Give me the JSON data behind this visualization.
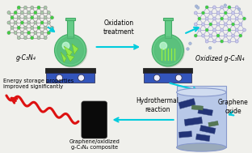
{
  "bg_color": "#f0f0ec",
  "title": "g-C₃N₄",
  "oxidized_title": "Oxidized g-C₃N₄",
  "oxidation_label": "Oxidation\ntreatment",
  "hydrothermal_label": "Hydrothermal\nreaction",
  "graphene_oxide_label": "Graphene\noxide",
  "composite_label": "Graphene/oxidized\ng-C₃N₄ composite",
  "energy_label": "Energy storage properties\nimproved significantly",
  "arrow_color": "#00ccdd",
  "flask_color_light": "#aaeebb",
  "flask_color_mid": "#66cc88",
  "flask_color_dark": "#44aa66",
  "hotplate_top": "#3355bb",
  "hotplate_side": "#1133aa",
  "hotplate_body": "#223399",
  "red_arrow_color": "#dd1111",
  "cylinder_color": "#b8c8e8",
  "cylinder_top": "#d0dcf0",
  "cylinder_rim": "#8899cc",
  "composite_color": "#111111",
  "mol1_bond_color": "#888888",
  "mol1_node_color": "#aaccaa",
  "mol1_green_color": "#44cc44",
  "mol2_bond_color": "#9999cc",
  "mol2_node_color": "#ccccee",
  "mol2_green_color": "#44cc44",
  "sheet_dark_color": "#223377",
  "sheet_green_color": "#557755"
}
